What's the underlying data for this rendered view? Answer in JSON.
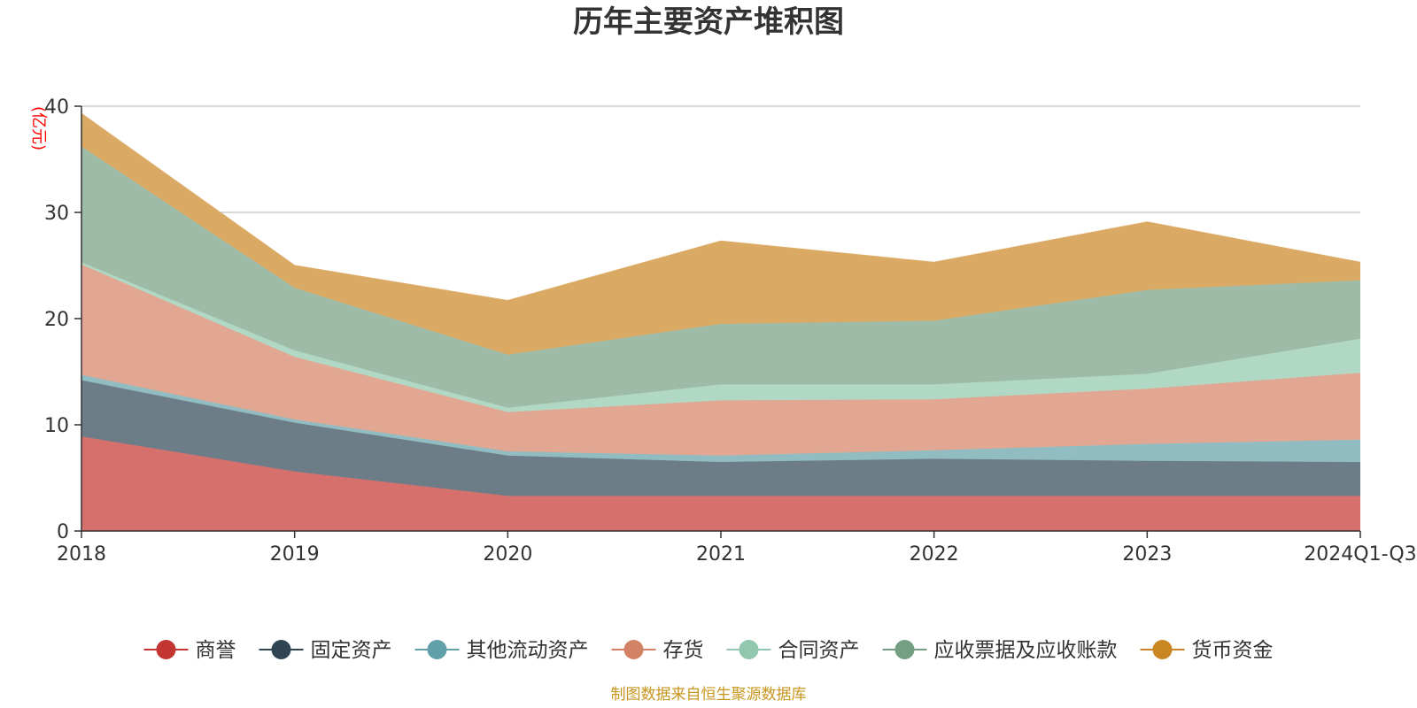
{
  "chart_data": {
    "type": "area",
    "stacked": true,
    "title": "历年主要资产堆积图",
    "unit_label": "(亿元)",
    "source_note": "制图数据来自恒生聚源数据库",
    "categories": [
      "2018",
      "2019",
      "2020",
      "2021",
      "2022",
      "2023",
      "2024Q1-Q3"
    ],
    "ylim": [
      0,
      40
    ],
    "yticks": [
      0,
      10,
      20,
      30,
      40
    ],
    "grid": true,
    "legend_position": "bottom",
    "series": [
      {
        "name": "商誉",
        "color": "#c23531",
        "fill": "#d5706d",
        "values": [
          8.9,
          5.6,
          3.3,
          3.3,
          3.3,
          3.3,
          3.3
        ]
      },
      {
        "name": "固定资产",
        "color": "#2f4554",
        "fill": "#6d7d88",
        "values": [
          5.3,
          4.6,
          3.8,
          3.2,
          3.5,
          3.3,
          3.2
        ]
      },
      {
        "name": "其他流动资产",
        "color": "#61a0a8",
        "fill": "#90bcc2",
        "values": [
          0.5,
          0.3,
          0.4,
          0.6,
          0.8,
          1.6,
          2.1
        ]
      },
      {
        "name": "存货",
        "color": "#d48265",
        "fill": "#e1a792",
        "values": [
          10.4,
          5.9,
          3.7,
          5.2,
          4.8,
          5.2,
          6.3
        ]
      },
      {
        "name": "合同资产",
        "color": "#91c7ae",
        "fill": "#b0d8c5",
        "values": [
          0.2,
          0.6,
          0.4,
          1.5,
          1.4,
          1.4,
          3.2
        ]
      },
      {
        "name": "应收票据及应收账款",
        "color": "#749f83",
        "fill": "#9ebba8",
        "values": [
          10.9,
          5.9,
          5.0,
          5.7,
          6.0,
          7.9,
          5.5
        ]
      },
      {
        "name": "货币资金",
        "color": "#ca8622",
        "fill": "#daaa64",
        "values": [
          3.1,
          2.1,
          5.1,
          7.8,
          5.5,
          6.4,
          1.7
        ]
      }
    ]
  }
}
